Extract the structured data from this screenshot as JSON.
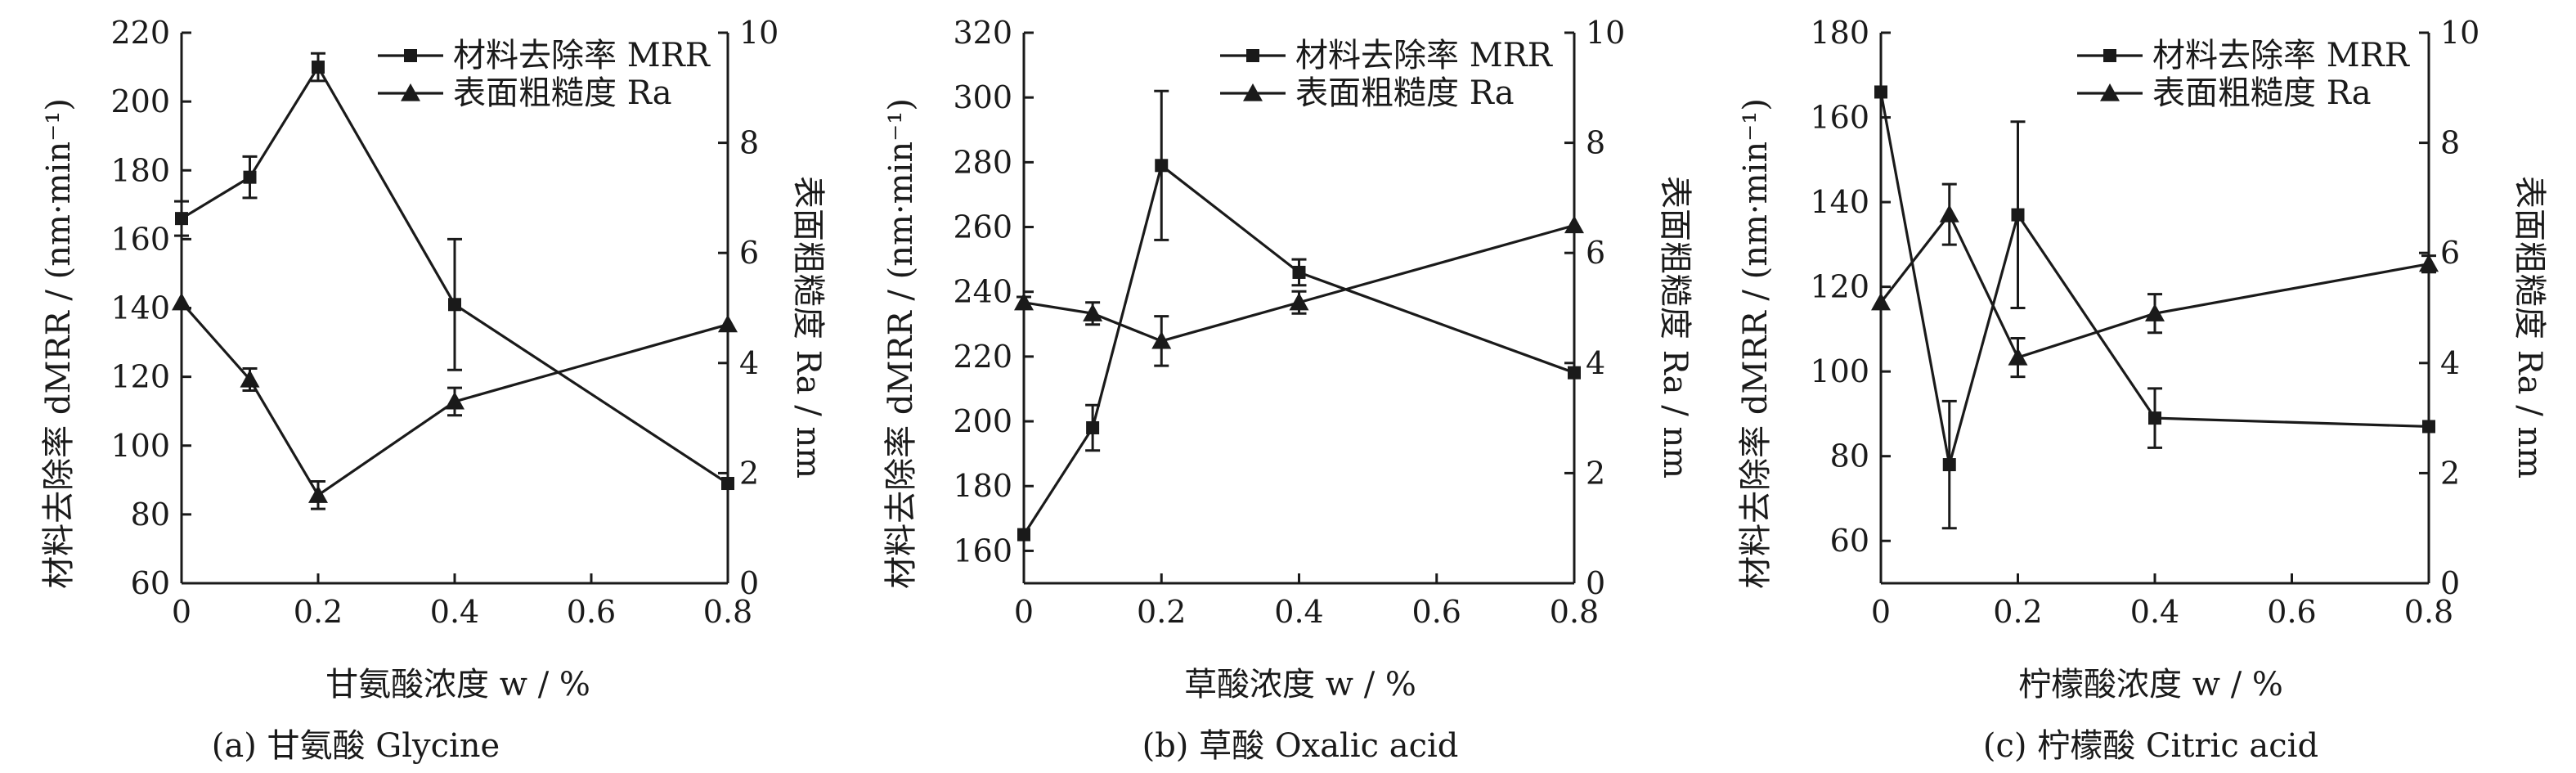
{
  "chart_data": [
    {
      "type": "line",
      "panel": "a",
      "caption": "(a) 甘氨酸 Glycine",
      "xlabel": "甘氨酸浓度 w / %",
      "ylabel_left": "材料去除率 dMRR / (nm·min⁻¹)",
      "ylabel_right": "表面粗糙度 Ra / nm",
      "xlim": [
        0,
        0.8
      ],
      "xticks": [
        "0",
        "0.2",
        "0.4",
        "0.6",
        "0.8"
      ],
      "ylim_left": [
        60,
        220
      ],
      "yticks_left": [
        "60",
        "80",
        "100",
        "120",
        "140",
        "160",
        "180",
        "200",
        "220"
      ],
      "ylim_right": [
        0,
        10
      ],
      "yticks_right": [
        "0",
        "2",
        "4",
        "6",
        "8",
        "10"
      ],
      "legend": [
        "材料去除率 MRR",
        "表面粗糙度 Ra"
      ],
      "series": [
        {
          "name": "材料去除率 MRR",
          "axis": "left",
          "marker": "square",
          "x": [
            0,
            0.1,
            0.2,
            0.4,
            0.8
          ],
          "y": [
            166,
            178,
            210,
            141,
            89
          ],
          "err": [
            5,
            6,
            4,
            19,
            0
          ]
        },
        {
          "name": "表面粗糙度 Ra",
          "axis": "right",
          "marker": "triangle",
          "x": [
            0,
            0.1,
            0.2,
            0.4,
            0.8
          ],
          "y": [
            5.1,
            3.7,
            1.6,
            3.3,
            4.7
          ],
          "err": [
            0,
            0.2,
            0.25,
            0.25,
            0
          ]
        }
      ]
    },
    {
      "type": "line",
      "panel": "b",
      "caption": "(b) 草酸 Oxalic acid",
      "xlabel": "草酸浓度 w / %",
      "ylabel_left": "材料去除率 dMRR / (nm·min⁻¹)",
      "ylabel_right": "表面粗糙度 Ra / nm",
      "xlim": [
        0,
        0.8
      ],
      "xticks": [
        "0",
        "0.2",
        "0.4",
        "0.6",
        "0.8"
      ],
      "ylim_left": [
        150,
        320
      ],
      "yticks_left": [
        "160",
        "180",
        "200",
        "220",
        "240",
        "260",
        "280",
        "300",
        "320"
      ],
      "ylim_right": [
        0,
        10
      ],
      "yticks_right": [
        "0",
        "2",
        "4",
        "6",
        "8",
        "10"
      ],
      "legend": [
        "材料去除率 MRR",
        "表面粗糙度 Ra"
      ],
      "series": [
        {
          "name": "材料去除率 MRR",
          "axis": "left",
          "marker": "square",
          "x": [
            0,
            0.1,
            0.2,
            0.4,
            0.8
          ],
          "y": [
            165,
            198,
            279,
            246,
            215
          ],
          "err": [
            0,
            7,
            23,
            4,
            0
          ]
        },
        {
          "name": "表面粗糙度 Ra",
          "axis": "right",
          "marker": "triangle",
          "x": [
            0,
            0.1,
            0.2,
            0.4,
            0.8
          ],
          "y": [
            5.1,
            4.9,
            4.4,
            5.1,
            6.5
          ],
          "err": [
            0.1,
            0.2,
            0.45,
            0.2,
            0
          ]
        }
      ]
    },
    {
      "type": "line",
      "panel": "c",
      "caption": "(c) 柠檬酸 Citric acid",
      "xlabel": "柠檬酸浓度 w / %",
      "ylabel_left": "材料去除率 dMRR / (nm·min⁻¹)",
      "ylabel_right": "表面粗糙度 Ra / nm",
      "xlim": [
        0,
        0.8
      ],
      "xticks": [
        "0",
        "0.2",
        "0.4",
        "0.6",
        "0.8"
      ],
      "ylim_left": [
        50,
        180
      ],
      "yticks_left": [
        "60",
        "80",
        "100",
        "120",
        "140",
        "160",
        "180"
      ],
      "ylim_right": [
        0,
        10
      ],
      "yticks_right": [
        "0",
        "2",
        "4",
        "6",
        "8",
        "10"
      ],
      "legend": [
        "材料去除率 MRR",
        "表面粗糙度 Ra"
      ],
      "series": [
        {
          "name": "材料去除率 MRR",
          "axis": "left",
          "marker": "square",
          "x": [
            0,
            0.1,
            0.2,
            0.4,
            0.8
          ],
          "y": [
            166,
            78,
            137,
            89,
            87
          ],
          "err": [
            0,
            15,
            22,
            7,
            0
          ]
        },
        {
          "name": "表面粗糙度 Ra",
          "axis": "right",
          "marker": "triangle",
          "x": [
            0,
            0.1,
            0.2,
            0.4,
            0.8
          ],
          "y": [
            5.1,
            6.7,
            4.1,
            4.9,
            5.8
          ],
          "err": [
            0,
            0.55,
            0.35,
            0.35,
            0.15
          ]
        }
      ]
    }
  ]
}
